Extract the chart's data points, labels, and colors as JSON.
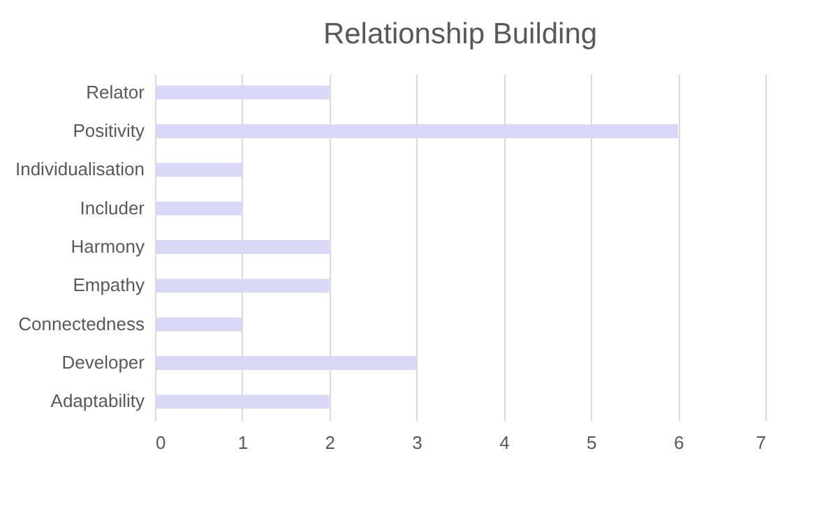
{
  "chart_data": {
    "type": "bar",
    "title": "Relationship Building",
    "orientation": "horizontal",
    "categories": [
      "Relator",
      "Positivity",
      "Individualisation",
      "Includer",
      "Harmony",
      "Empathy",
      "Connectedness",
      "Developer",
      "Adaptability"
    ],
    "values": [
      2,
      6,
      1,
      1,
      2,
      2,
      1,
      3,
      2
    ],
    "color": "#d9d9f7",
    "xlim": [
      0,
      7
    ],
    "xticks": [
      0,
      1,
      2,
      3,
      4,
      5,
      6,
      7
    ],
    "grid": "x"
  }
}
